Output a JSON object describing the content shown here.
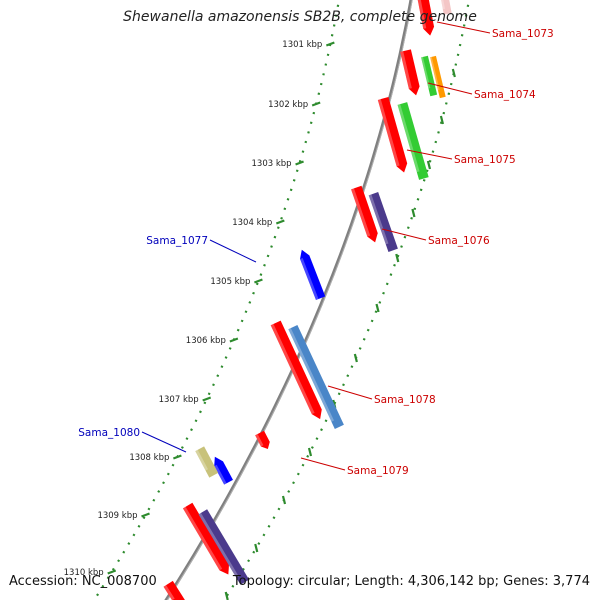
{
  "title": "Shewanella amazonensis SB2B, complete genome",
  "accession_label": "Accession: NC_008700",
  "topology_label": "Topology: circular; Length: 4,306,142 bp; Genes: 3,774",
  "colors": {
    "backbone": "#808080",
    "ticks": "#2e8b2e",
    "forward_label": "#cc0000",
    "reverse_label": "#0000bb",
    "cds": "#ff0000",
    "blue_gene": "#0000ff",
    "green_feature": "#33cc33",
    "orange_feature": "#ff9900",
    "purple_feature": "#4b3a8c",
    "steel_feature": "#4a86c8",
    "khaki_feature": "#c8c27a"
  },
  "scale_ticks": [
    {
      "label": "1301 kbp"
    },
    {
      "label": "1302 kbp"
    },
    {
      "label": "1303 kbp"
    },
    {
      "label": "1304 kbp"
    },
    {
      "label": "1305 kbp"
    },
    {
      "label": "1306 kbp"
    },
    {
      "label": "1307 kbp"
    },
    {
      "label": "1308 kbp"
    },
    {
      "label": "1309 kbp"
    },
    {
      "label": "1310 kbp"
    }
  ],
  "gene_labels": [
    {
      "name": "Sama_1073",
      "strand": "forward"
    },
    {
      "name": "Sama_1074",
      "strand": "forward"
    },
    {
      "name": "Sama_1075",
      "strand": "forward"
    },
    {
      "name": "Sama_1076",
      "strand": "forward"
    },
    {
      "name": "Sama_1077",
      "strand": "reverse"
    },
    {
      "name": "Sama_1078",
      "strand": "forward"
    },
    {
      "name": "Sama_1079",
      "strand": "forward"
    },
    {
      "name": "Sama_1080",
      "strand": "reverse"
    }
  ]
}
